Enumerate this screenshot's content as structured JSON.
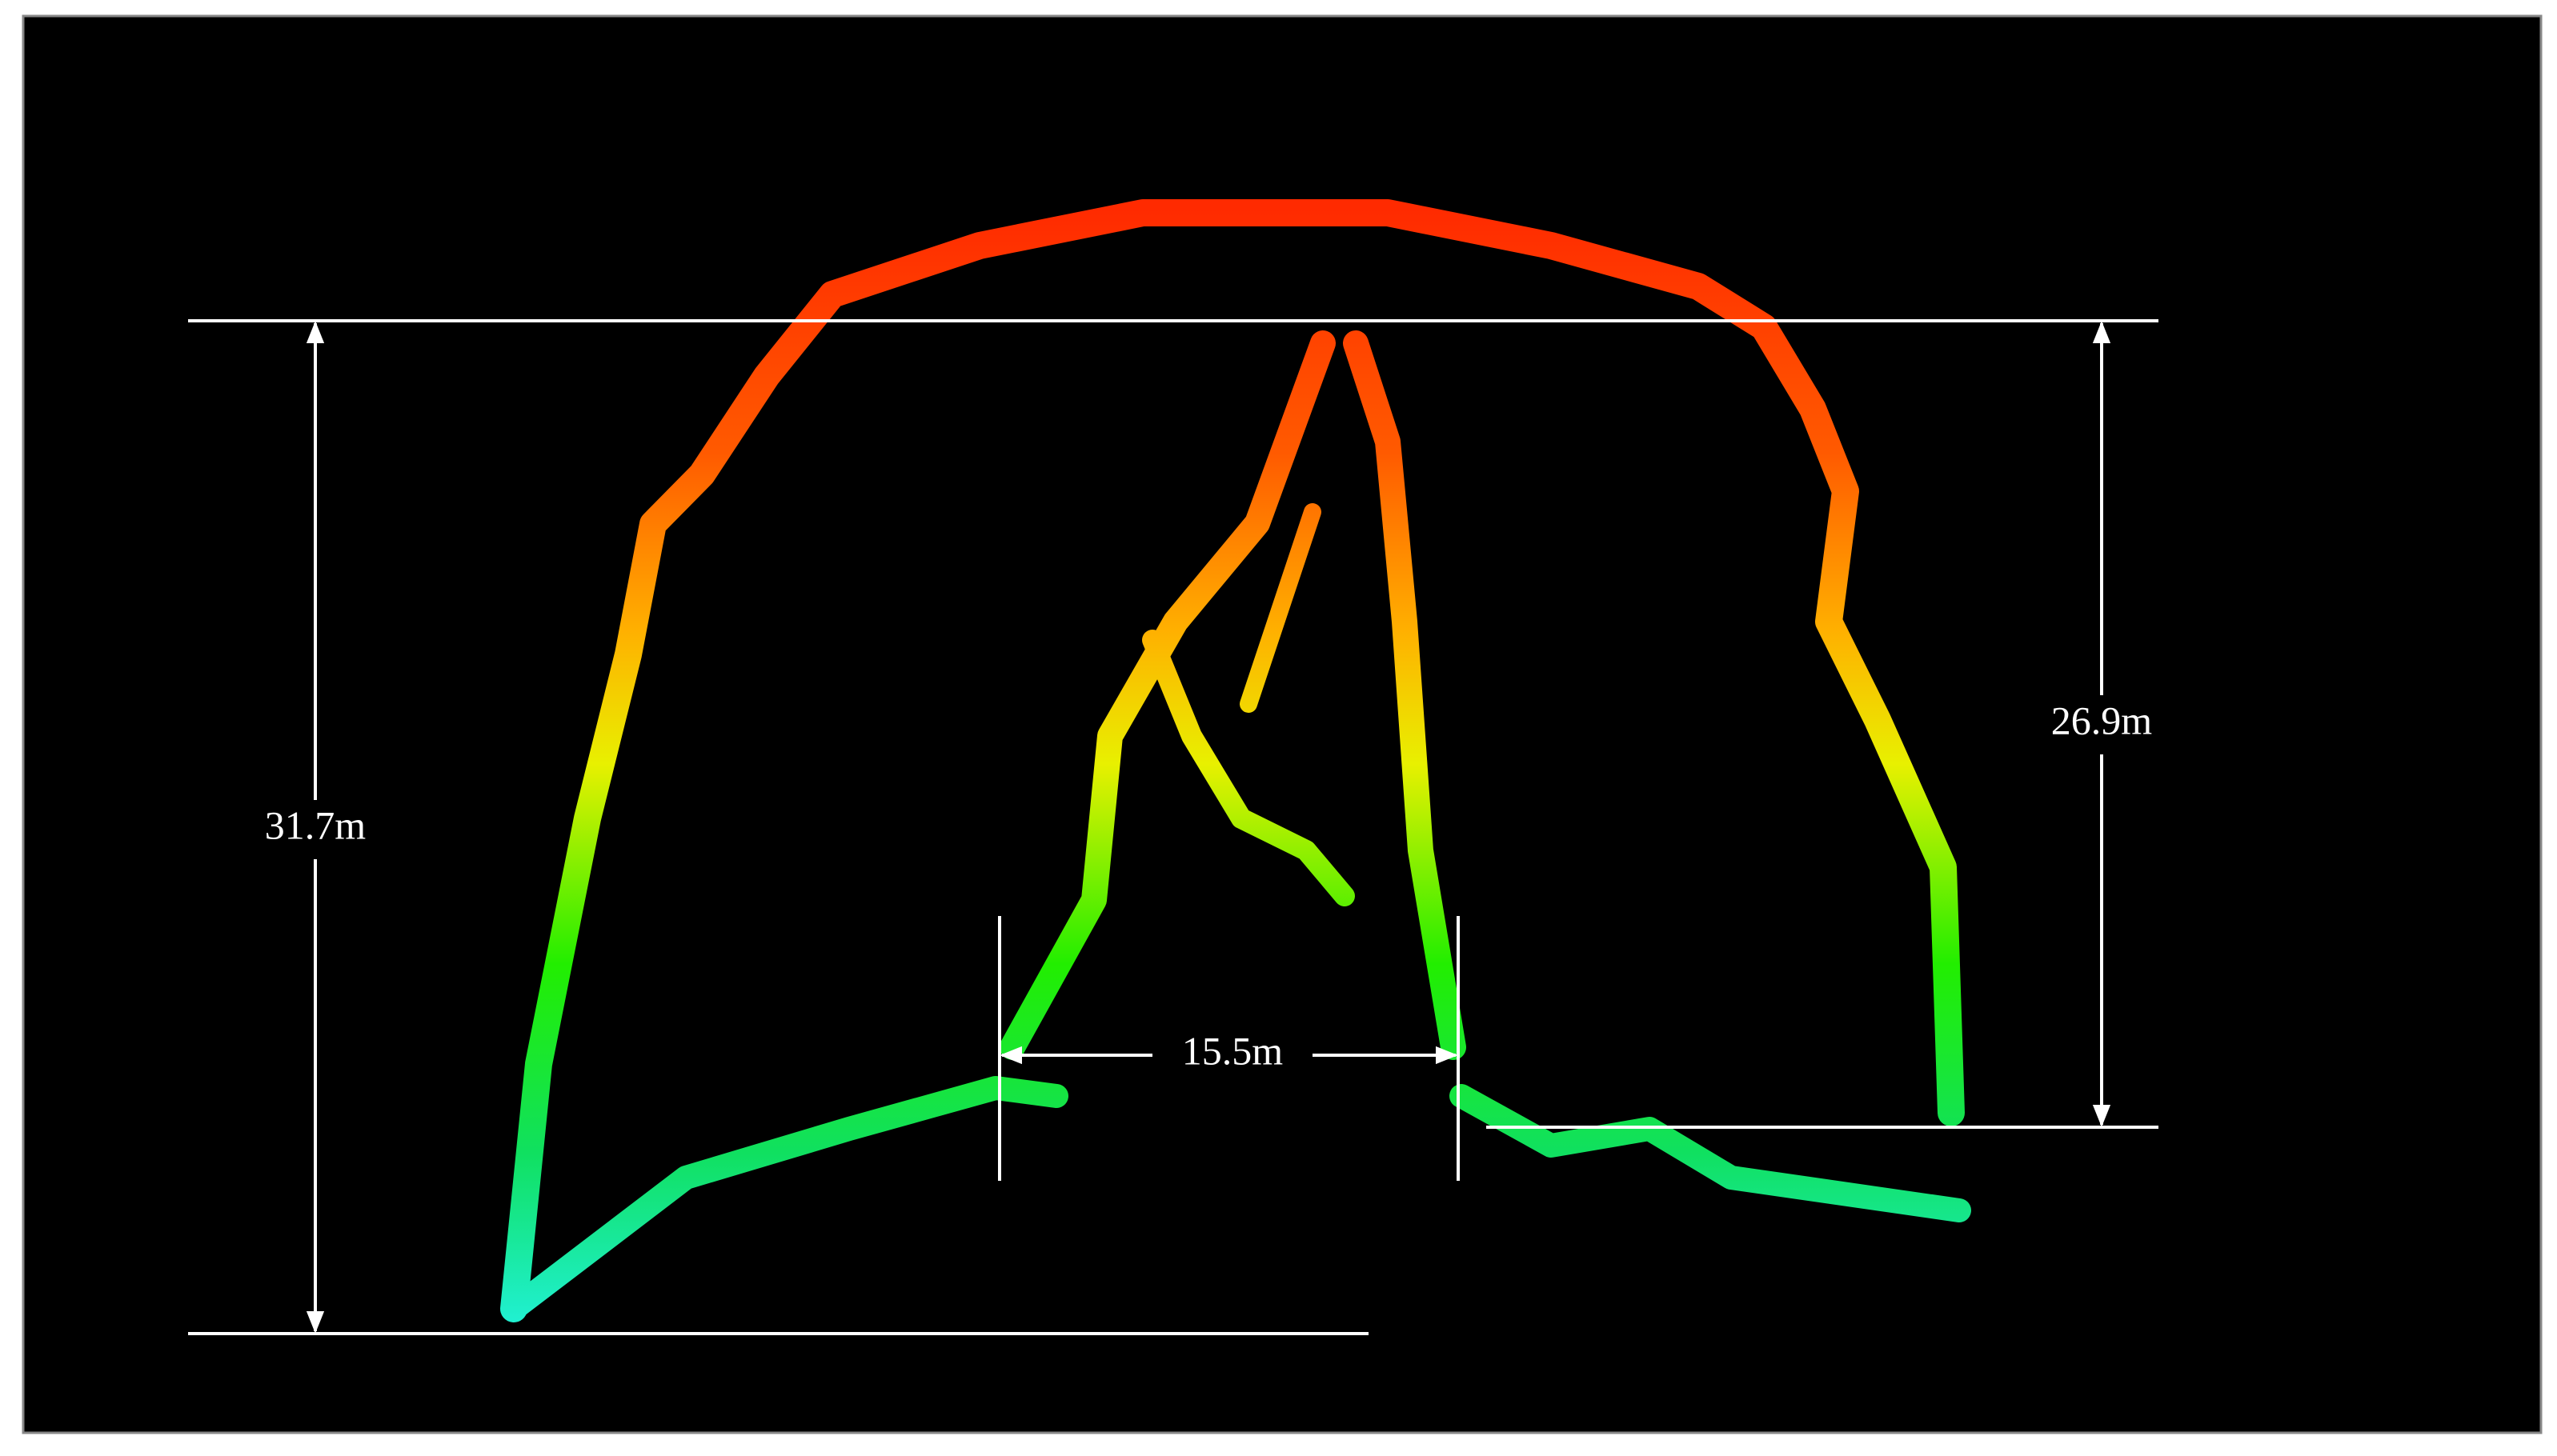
{
  "dimensions": {
    "left_height": "31.7m",
    "right_height": "26.9m",
    "bottom_width": "15.5m"
  }
}
